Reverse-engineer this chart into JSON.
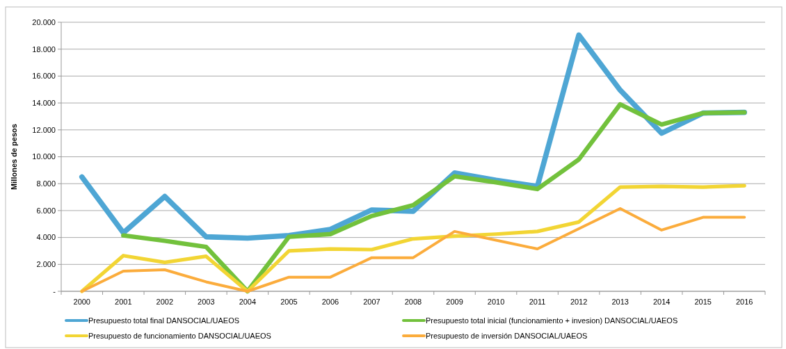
{
  "chart_data": {
    "type": "line",
    "ylabel": "Millones de pesos",
    "categories": [
      "2000",
      "2001",
      "2002",
      "2003",
      "2004",
      "2005",
      "2006",
      "2007",
      "2008",
      "2009",
      "2010",
      "2011",
      "2012",
      "2013",
      "2014",
      "2015",
      "2016"
    ],
    "series": [
      {
        "name": "Presupuesto total final DANSOCIAL/UAEOS",
        "color": "#4ea6d4",
        "values": [
          8500,
          4350,
          7050,
          4050,
          3950,
          4150,
          4600,
          6050,
          5950,
          8800,
          8250,
          7800,
          19050,
          14950,
          11750,
          13250,
          13300
        ]
      },
      {
        "name": "Presupuesto total inicial (funcionamiento + invesion) DANSOCIAL/UAEOS",
        "color": "#72c13c",
        "values": [
          null,
          4150,
          3750,
          3300,
          0,
          4050,
          4250,
          5600,
          6400,
          8550,
          8100,
          7600,
          9800,
          13900,
          12400,
          13250,
          13300
        ]
      },
      {
        "name": "Presupuesto de funcionamiento DANSOCIAL/UAEOS",
        "color": "#f2d534",
        "values": [
          0,
          2650,
          2150,
          2600,
          0,
          3000,
          3150,
          3100,
          3900,
          4100,
          4250,
          4450,
          5150,
          7750,
          7800,
          7750,
          7850
        ]
      },
      {
        "name": "Presupuesto de inversión DANSOCIAL/UAEOS",
        "color": "#fbac3c",
        "values": [
          0,
          1500,
          1600,
          700,
          0,
          1050,
          1050,
          2500,
          2500,
          4450,
          3800,
          3150,
          4650,
          6150,
          4550,
          5500,
          5500
        ]
      }
    ],
    "ylim": [
      0,
      20000
    ],
    "yticks": [
      {
        "value": 0,
        "label": "-"
      },
      {
        "value": 2000,
        "label": "2.000"
      },
      {
        "value": 4000,
        "label": "4.000"
      },
      {
        "value": 6000,
        "label": "6.000"
      },
      {
        "value": 8000,
        "label": "8.000"
      },
      {
        "value": 10000,
        "label": "10.000"
      },
      {
        "value": 12000,
        "label": "12.000"
      },
      {
        "value": 14000,
        "label": "14.000"
      },
      {
        "value": 16000,
        "label": "16.000"
      },
      {
        "value": 18000,
        "label": "18.000"
      },
      {
        "value": 20000,
        "label": "20.000"
      }
    ],
    "grid": "y",
    "legend": "bottom",
    "marker": "none",
    "line_style": "solid"
  }
}
